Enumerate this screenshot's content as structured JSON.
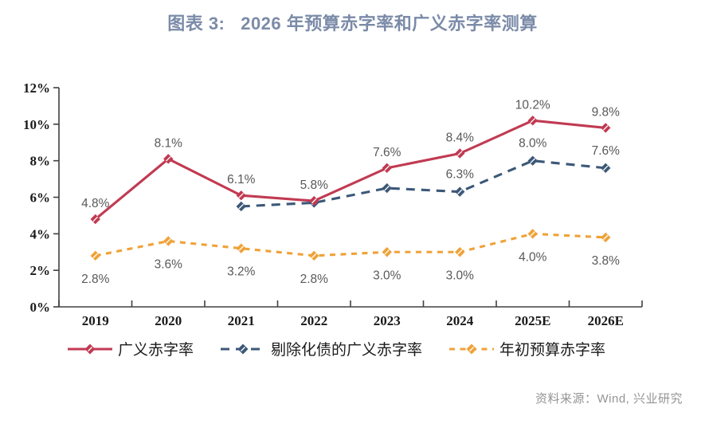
{
  "title": "图表 3:   2026 年预算赤字率和广义赤字率测算",
  "source": "资料来源：Wind, 兴业研究",
  "colors": {
    "title": "#7b8ba8",
    "axis": "#404040",
    "tick_label": "#1a1a1a",
    "data_label": "#595959",
    "source_text": "#949494",
    "series_red": "#c13a52",
    "series_blue": "#3c5878",
    "series_orange": "#efa238"
  },
  "chart_data": {
    "type": "line",
    "title": "图表 3:   2026 年预算赤字率和广义赤字率测算",
    "categories": [
      "2019",
      "2020",
      "2021",
      "2022",
      "2023",
      "2024",
      "2025E",
      "2026E"
    ],
    "series": [
      {
        "name": "广义赤字率",
        "color": "#c13a52",
        "line_style": "solid",
        "marker": "diamond",
        "values": [
          4.8,
          8.1,
          6.1,
          5.8,
          7.6,
          8.4,
          10.2,
          9.8
        ],
        "labels": [
          "4.8%",
          "8.1%",
          "6.1%",
          "5.8%",
          "7.6%",
          "8.4%",
          "10.2%",
          "9.8%"
        ],
        "label_pos": "above"
      },
      {
        "name": "剔除化债的广义赤字率",
        "color": "#3c5878",
        "line_style": "dashed",
        "marker": "diamond",
        "values": [
          null,
          null,
          5.5,
          5.7,
          6.5,
          6.3,
          8.0,
          7.6
        ],
        "labels": [
          null,
          null,
          null,
          null,
          null,
          "6.3%",
          "8.0%",
          "7.6%"
        ],
        "label_pos": "above"
      },
      {
        "name": "年初预算赤字率",
        "color": "#efa238",
        "line_style": "dashed",
        "marker": "diamond",
        "values": [
          2.8,
          3.6,
          3.2,
          2.8,
          3.0,
          3.0,
          4.0,
          3.8
        ],
        "labels": [
          "2.8%",
          "3.6%",
          "3.2%",
          "2.8%",
          "3.0%",
          "3.0%",
          "4.0%",
          "3.8%"
        ],
        "label_pos": "below"
      }
    ],
    "xlabel": "",
    "ylabel": "",
    "ylim": [
      0,
      12
    ],
    "ytick_step": 2,
    "ytick_labels": [
      "0%",
      "2%",
      "4%",
      "6%",
      "8%",
      "10%",
      "12%"
    ],
    "grid": false,
    "legend_position": "bottom"
  }
}
